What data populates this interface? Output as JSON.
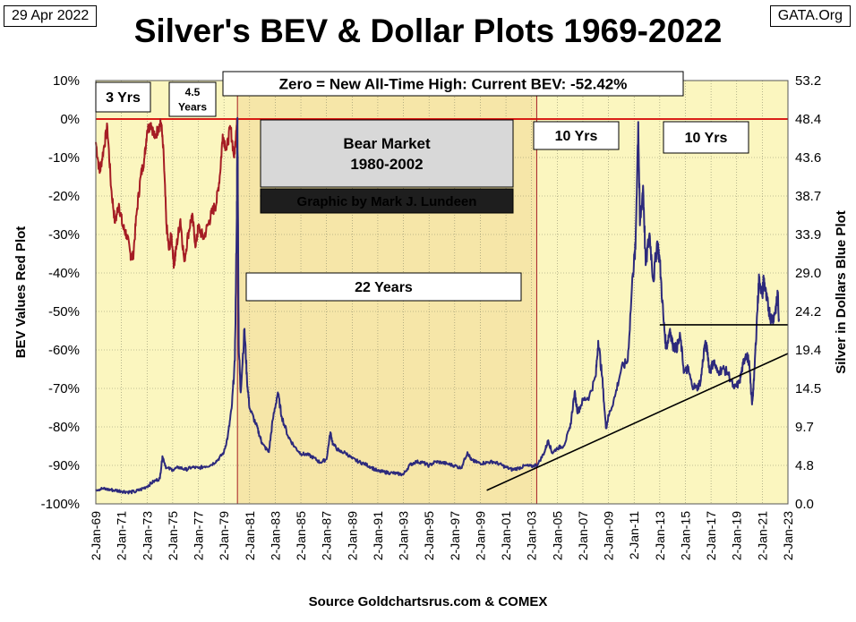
{
  "header": {
    "date": "29 Apr 2022",
    "source_site": "GATA.Org",
    "title": "Silver's BEV & Dollar Plots 1969-2022",
    "footer": "Source Goldchartsrus.com & COMEX"
  },
  "chart_data": {
    "type": "line",
    "title": "Silver's BEV & Dollar Plots 1969-2022",
    "ylabel_left": "BEV Values   Red Plot",
    "ylabel_right": "Silver in Dollars  Blue Plot",
    "y_left_ticks": [
      "10%",
      "0%",
      "-10%",
      "-20%",
      "-30%",
      "-40%",
      "-50%",
      "-60%",
      "-70%",
      "-80%",
      "-90%",
      "-100%"
    ],
    "y_left_range": [
      -100,
      10
    ],
    "y_right_ticks": [
      "53.2",
      "48.4",
      "43.6",
      "38.7",
      "33.9",
      "29.0",
      "24.2",
      "19.4",
      "14.5",
      "9.7",
      "4.8",
      "0.0"
    ],
    "y_right_range": [
      0,
      53.2
    ],
    "x_ticks": [
      "2-Jan-69",
      "2-Jan-71",
      "2-Jan-73",
      "2-Jan-75",
      "2-Jan-77",
      "2-Jan-79",
      "2-Jan-81",
      "2-Jan-83",
      "2-Jan-85",
      "2-Jan-87",
      "2-Jan-89",
      "2-Jan-91",
      "2-Jan-93",
      "2-Jan-95",
      "2-Jan-97",
      "2-Jan-99",
      "2-Jan-01",
      "2-Jan-03",
      "2-Jan-05",
      "2-Jan-07",
      "2-Jan-09",
      "2-Jan-11",
      "2-Jan-13",
      "2-Jan-15",
      "2-Jan-17",
      "2-Jan-19",
      "2-Jan-21",
      "2-Jan-23"
    ],
    "x_range": [
      1969.0,
      2023.0
    ],
    "series": [
      {
        "name": "Silver BEV (Red Plot)",
        "color": "#a51c24",
        "axis": "left",
        "points": [
          [
            1969.0,
            -6
          ],
          [
            1969.3,
            -14
          ],
          [
            1969.6,
            -8
          ],
          [
            1969.9,
            -2
          ],
          [
            1970.2,
            -18
          ],
          [
            1970.5,
            -27
          ],
          [
            1970.8,
            -22
          ],
          [
            1971.1,
            -28
          ],
          [
            1971.4,
            -30
          ],
          [
            1971.7,
            -35
          ],
          [
            1971.9,
            -36
          ],
          [
            1972.2,
            -24
          ],
          [
            1972.5,
            -15
          ],
          [
            1972.8,
            -10
          ],
          [
            1973.0,
            -3
          ],
          [
            1973.3,
            -1
          ],
          [
            1973.6,
            -5
          ],
          [
            1973.9,
            -2
          ],
          [
            1974.1,
            -1
          ],
          [
            1974.3,
            -10
          ],
          [
            1974.5,
            -27
          ],
          [
            1974.7,
            -34
          ],
          [
            1974.9,
            -30
          ],
          [
            1975.1,
            -38
          ],
          [
            1975.3,
            -33
          ],
          [
            1975.6,
            -26
          ],
          [
            1975.9,
            -37
          ],
          [
            1976.2,
            -30
          ],
          [
            1976.5,
            -25
          ],
          [
            1976.8,
            -33
          ],
          [
            1977.0,
            -28
          ],
          [
            1977.4,
            -31
          ],
          [
            1977.8,
            -27
          ],
          [
            1978.1,
            -24
          ],
          [
            1978.4,
            -22
          ],
          [
            1978.7,
            -14
          ],
          [
            1978.9,
            -4
          ],
          [
            1979.2,
            -8
          ],
          [
            1979.5,
            -2
          ],
          [
            1979.8,
            -10
          ],
          [
            1979.95,
            -3
          ],
          [
            1980.05,
            0
          ]
        ]
      },
      {
        "name": "Silver in Dollars (Blue Plot)",
        "color": "#2d2a7c",
        "axis": "right",
        "points": [
          [
            1969.0,
            1.8
          ],
          [
            1969.5,
            1.9
          ],
          [
            1970.0,
            1.8
          ],
          [
            1970.5,
            1.7
          ],
          [
            1971.0,
            1.6
          ],
          [
            1971.5,
            1.5
          ],
          [
            1972.0,
            1.5
          ],
          [
            1972.5,
            1.8
          ],
          [
            1973.0,
            2.2
          ],
          [
            1973.5,
            2.8
          ],
          [
            1974.0,
            3.2
          ],
          [
            1974.2,
            6.0
          ],
          [
            1974.5,
            4.5
          ],
          [
            1975.0,
            4.3
          ],
          [
            1975.5,
            4.6
          ],
          [
            1976.0,
            4.3
          ],
          [
            1976.5,
            4.6
          ],
          [
            1977.0,
            4.5
          ],
          [
            1977.5,
            4.7
          ],
          [
            1978.0,
            4.9
          ],
          [
            1978.5,
            5.5
          ],
          [
            1979.0,
            6.5
          ],
          [
            1979.3,
            8.5
          ],
          [
            1979.6,
            12.0
          ],
          [
            1979.85,
            18.0
          ],
          [
            1980.0,
            36.0
          ],
          [
            1980.05,
            48.5
          ],
          [
            1980.15,
            20.0
          ],
          [
            1980.3,
            14.0
          ],
          [
            1980.6,
            22.0
          ],
          [
            1980.8,
            15.5
          ],
          [
            1981.0,
            12.0
          ],
          [
            1981.5,
            10.0
          ],
          [
            1981.8,
            8.5
          ],
          [
            1982.0,
            7.5
          ],
          [
            1982.5,
            6.5
          ],
          [
            1982.8,
            10.5
          ],
          [
            1983.2,
            14.0
          ],
          [
            1983.5,
            11.0
          ],
          [
            1984.0,
            8.5
          ],
          [
            1984.5,
            7.2
          ],
          [
            1985.0,
            6.3
          ],
          [
            1985.5,
            6.2
          ],
          [
            1986.0,
            5.8
          ],
          [
            1986.5,
            5.2
          ],
          [
            1987.0,
            5.6
          ],
          [
            1987.3,
            9.0
          ],
          [
            1987.5,
            7.5
          ],
          [
            1988.0,
            6.6
          ],
          [
            1988.5,
            6.4
          ],
          [
            1989.0,
            5.7
          ],
          [
            1989.5,
            5.3
          ],
          [
            1990.0,
            5.0
          ],
          [
            1990.5,
            4.6
          ],
          [
            1991.0,
            4.1
          ],
          [
            1991.5,
            4.0
          ],
          [
            1992.0,
            3.9
          ],
          [
            1992.5,
            3.8
          ],
          [
            1993.0,
            3.7
          ],
          [
            1993.5,
            4.9
          ],
          [
            1994.0,
            5.3
          ],
          [
            1994.5,
            5.2
          ],
          [
            1995.0,
            4.8
          ],
          [
            1995.5,
            5.3
          ],
          [
            1996.0,
            5.2
          ],
          [
            1996.5,
            5.0
          ],
          [
            1997.0,
            4.8
          ],
          [
            1997.5,
            4.5
          ],
          [
            1998.0,
            6.5
          ],
          [
            1998.3,
            5.5
          ],
          [
            1998.6,
            5.3
          ],
          [
            1999.0,
            5.1
          ],
          [
            1999.5,
            5.2
          ],
          [
            2000.0,
            5.3
          ],
          [
            2000.5,
            5.0
          ],
          [
            2001.0,
            4.6
          ],
          [
            2001.5,
            4.3
          ],
          [
            2002.0,
            4.5
          ],
          [
            2002.5,
            4.8
          ],
          [
            2003.0,
            4.7
          ],
          [
            2003.5,
            5.0
          ],
          [
            2004.0,
            6.5
          ],
          [
            2004.3,
            8.0
          ],
          [
            2004.6,
            6.4
          ],
          [
            2005.0,
            7.0
          ],
          [
            2005.5,
            7.3
          ],
          [
            2006.0,
            9.5
          ],
          [
            2006.35,
            14.0
          ],
          [
            2006.6,
            11.5
          ],
          [
            2007.0,
            13.0
          ],
          [
            2007.5,
            13.5
          ],
          [
            2008.0,
            16.0
          ],
          [
            2008.2,
            20.5
          ],
          [
            2008.5,
            16.0
          ],
          [
            2008.8,
            9.5
          ],
          [
            2009.0,
            11.0
          ],
          [
            2009.5,
            13.5
          ],
          [
            2010.0,
            17.0
          ],
          [
            2010.5,
            18.0
          ],
          [
            2010.9,
            29.0
          ],
          [
            2011.1,
            32.0
          ],
          [
            2011.32,
            48.0
          ],
          [
            2011.45,
            35.0
          ],
          [
            2011.7,
            40.0
          ],
          [
            2011.9,
            30.0
          ],
          [
            2012.2,
            34.0
          ],
          [
            2012.5,
            28.0
          ],
          [
            2012.8,
            33.0
          ],
          [
            2013.0,
            30.5
          ],
          [
            2013.3,
            23.0
          ],
          [
            2013.5,
            19.5
          ],
          [
            2013.8,
            22.0
          ],
          [
            2014.0,
            20.0
          ],
          [
            2014.3,
            19.5
          ],
          [
            2014.6,
            21.0
          ],
          [
            2014.9,
            16.5
          ],
          [
            2015.2,
            17.0
          ],
          [
            2015.5,
            15.0
          ],
          [
            2015.9,
            14.5
          ],
          [
            2016.2,
            15.5
          ],
          [
            2016.5,
            20.0
          ],
          [
            2016.7,
            19.5
          ],
          [
            2016.9,
            16.5
          ],
          [
            2017.2,
            18.0
          ],
          [
            2017.5,
            16.5
          ],
          [
            2017.9,
            17.0
          ],
          [
            2018.3,
            16.5
          ],
          [
            2018.8,
            14.5
          ],
          [
            2019.2,
            15.2
          ],
          [
            2019.5,
            17.5
          ],
          [
            2019.7,
            18.8
          ],
          [
            2019.95,
            18.0
          ],
          [
            2020.2,
            12.5
          ],
          [
            2020.35,
            15.5
          ],
          [
            2020.6,
            24.0
          ],
          [
            2020.75,
            28.5
          ],
          [
            2021.0,
            26.0
          ],
          [
            2021.1,
            28.5
          ],
          [
            2021.3,
            26.0
          ],
          [
            2021.5,
            24.5
          ],
          [
            2021.7,
            23.2
          ],
          [
            2021.9,
            23.5
          ],
          [
            2022.1,
            25.0
          ],
          [
            2022.2,
            26.5
          ],
          [
            2022.3,
            23.0
          ]
        ]
      }
    ],
    "reference_lines": [
      {
        "name": "BEV zero / all-time high",
        "color": "#d40000",
        "axis": "left",
        "value": 0
      },
      {
        "name": "Bear market start",
        "color": "#a51c24",
        "x": 1980.05
      },
      {
        "name": "Bear market end",
        "color": "#a51c24",
        "x": 2003.4
      }
    ],
    "trend_lines": [
      {
        "name": "Rising support line",
        "color": "#000000",
        "axis": "right",
        "from": [
          1999.5,
          1.7
        ],
        "to": [
          2023.0,
          18.9
        ]
      },
      {
        "name": "Resistance line",
        "color": "#000000",
        "axis": "right",
        "from": [
          2013.0,
          22.5
        ],
        "to": [
          2023.0,
          22.5
        ]
      }
    ],
    "shaded_regions": [
      {
        "name": "Bear market 1980-2002",
        "from": 1980.05,
        "to": 2003.4,
        "color": "#f6e6a8"
      }
    ],
    "annotations": [
      {
        "id": "zero-note",
        "lines": [
          "Zero = New All-Time High: Current BEV: -52.42%"
        ]
      },
      {
        "id": "three-yrs",
        "lines": [
          "3 Yrs"
        ]
      },
      {
        "id": "four-half-yrs",
        "lines": [
          "4.5",
          "Years"
        ]
      },
      {
        "id": "bear-market",
        "lines": [
          "Bear Market",
          "1980-2002"
        ]
      },
      {
        "id": "credit",
        "lines": [
          "Graphic by Mark J. Lundeen"
        ]
      },
      {
        "id": "twenty-two-years",
        "lines": [
          "22 Years"
        ]
      },
      {
        "id": "ten-yrs-a",
        "lines": [
          "10 Yrs"
        ]
      },
      {
        "id": "ten-yrs-b",
        "lines": [
          "10 Yrs"
        ]
      }
    ],
    "colors": {
      "plot_background": "#fbf6bf",
      "bear_region": "#f6e6a8",
      "grid": "#8a8a6a",
      "credit_background": "#1e1e1e",
      "credit_text": "#f3ea9f",
      "bear_box": "#d8d8d8"
    }
  }
}
